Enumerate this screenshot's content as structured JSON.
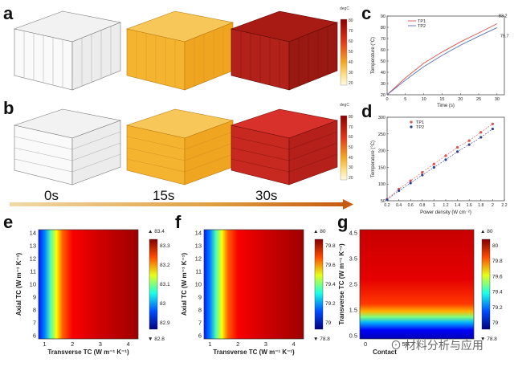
{
  "panels": {
    "a": "a",
    "b": "b",
    "c": "c",
    "d": "d",
    "e": "e",
    "f": "f",
    "g": "g"
  },
  "time_labels": [
    "0s",
    "15s",
    "30s"
  ],
  "colorbar_ab": {
    "unit": "degC",
    "ticks_a": [
      "80",
      "70",
      "60",
      "50",
      "40",
      "30",
      "20"
    ],
    "ticks_b": [
      "80",
      "70",
      "60",
      "50",
      "40",
      "30",
      "20"
    ]
  },
  "panel_c": {
    "ylabel": "Temperature (°C)",
    "xlabel": "Time (s)",
    "legend": [
      "TP1",
      "TP2"
    ],
    "annotations": [
      "83.2",
      "79.7"
    ],
    "xticks": [
      "0",
      "5",
      "10",
      "15",
      "20",
      "25",
      "30"
    ],
    "yticks": [
      "20",
      "30",
      "40",
      "50",
      "60",
      "70",
      "80",
      "90"
    ]
  },
  "panel_d": {
    "ylabel": "Temperature (°C)",
    "xlabel": "Power density (W cm⁻²)",
    "legend": [
      "TP1",
      "TP2"
    ],
    "xticks": [
      "0.2",
      "0.4",
      "0.6",
      "0.8",
      "1",
      "1.2",
      "1.4",
      "1.6",
      "1.8",
      "2",
      "2.2"
    ],
    "yticks": [
      "50",
      "100",
      "150",
      "200",
      "250",
      "300"
    ]
  },
  "panel_e": {
    "ylabel": "Axial TC (W m⁻¹ K⁻¹)",
    "xlabel": "Transverse TC (W m⁻¹ K⁻¹)",
    "yticks": [
      "14",
      "13",
      "12",
      "11",
      "10",
      "9",
      "8",
      "7",
      "6"
    ],
    "xticks": [
      "1",
      "2",
      "3",
      "4"
    ],
    "cbar_top": "▲ 83.4",
    "cbar_ticks": [
      "83.3",
      "83.2",
      "83.1",
      "83",
      "82.9"
    ],
    "cbar_bottom": "▼ 82.8"
  },
  "panel_f": {
    "ylabel": "Axial TC (W m⁻¹ K⁻¹)",
    "xlabel": "Transverse TC (W m⁻¹ K⁻¹)",
    "yticks": [
      "14",
      "13",
      "12",
      "11",
      "10",
      "9",
      "8",
      "7",
      "6"
    ],
    "xticks": [
      "1",
      "2",
      "3",
      "4"
    ],
    "cbar_top": "▲ 80",
    "cbar_ticks": [
      "79.8",
      "79.6",
      "79.4",
      "79.2",
      "79"
    ],
    "cbar_bottom": "▼ 78.8"
  },
  "panel_g": {
    "ylabel": "Transverse TC (W m⁻¹ K⁻¹)",
    "xlabel": "Contact",
    "yticks": [
      "4.5",
      "3.5",
      "2.5",
      "1.5",
      "0.5"
    ],
    "xticks": [
      "0",
      "50"
    ],
    "cbar_top": "▲ 80",
    "cbar_ticks": [
      "80",
      "79.8",
      "79.6",
      "79.4",
      "79.2",
      "79"
    ],
    "cbar_bottom": "▼ 78.8"
  },
  "chart_data": [
    {
      "type": "line",
      "id": "c",
      "title": "",
      "xlabel": "Time (s)",
      "ylabel": "Temperature (°C)",
      "xlim": [
        0,
        32
      ],
      "ylim": [
        20,
        90
      ],
      "x": [
        0,
        5,
        10,
        15,
        20,
        25,
        30
      ],
      "series": [
        {
          "name": "TP1",
          "color": "#d9534f",
          "values": [
            20,
            35,
            48,
            58,
            67,
            75,
            83.2
          ]
        },
        {
          "name": "TP2",
          "color": "#5b6fb5",
          "values": [
            20,
            33,
            45,
            55,
            64,
            72,
            79.7
          ]
        }
      ]
    },
    {
      "type": "scatter",
      "id": "d",
      "title": "",
      "xlabel": "Power density (W cm⁻²)",
      "ylabel": "Temperature (°C)",
      "xlim": [
        0.2,
        2.2
      ],
      "ylim": [
        50,
        300
      ],
      "x": [
        0.2,
        0.4,
        0.6,
        0.8,
        1.0,
        1.2,
        1.4,
        1.6,
        1.8,
        2.0
      ],
      "series": [
        {
          "name": "TP1",
          "color": "#d9534f",
          "values": [
            55,
            85,
            110,
            135,
            160,
            185,
            210,
            230,
            255,
            280
          ]
        },
        {
          "name": "TP2",
          "color": "#2f3f8f",
          "values": [
            53,
            80,
            103,
            127,
            150,
            173,
            197,
            218,
            240,
            265
          ]
        }
      ]
    }
  ]
}
